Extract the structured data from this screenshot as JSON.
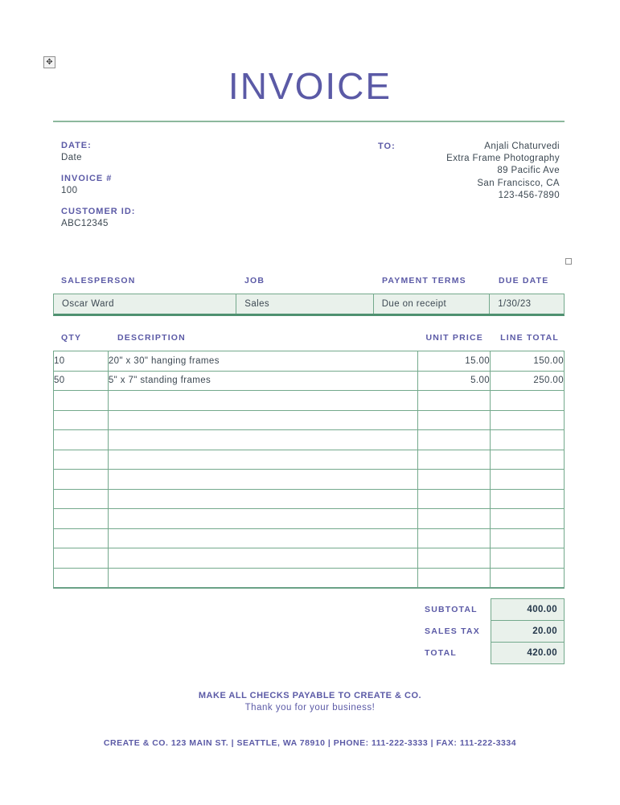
{
  "title": "INVOICE",
  "meta": {
    "date_label": "DATE:",
    "date_value": "Date",
    "invoice_label": "INVOICE #",
    "invoice_value": "100",
    "customer_label": "CUSTOMER ID:",
    "customer_value": "ABC12345",
    "to_label": "TO:",
    "to_lines": {
      "0": "Anjali Chaturvedi",
      "1": "Extra Frame Photography",
      "2": "89 Pacific Ave",
      "3": "San Francisco, CA",
      "4": "123-456-7890"
    }
  },
  "sales_table": {
    "headers": [
      "SALESPERSON",
      "JOB",
      "PAYMENT TERMS",
      "DUE DATE"
    ],
    "row": [
      "Oscar Ward",
      "Sales",
      "Due on receipt",
      "1/30/23"
    ]
  },
  "items_table": {
    "headers": [
      "QTY",
      "DESCRIPTION",
      "UNIT PRICE",
      "LINE TOTAL"
    ],
    "rows": [
      {
        "qty": "10",
        "description": "20\" x 30\" hanging frames",
        "unit_price": "15.00",
        "line_total": "150.00"
      },
      {
        "qty": "50",
        "description": "5\" x 7\" standing frames",
        "unit_price": "5.00",
        "line_total": "250.00"
      }
    ],
    "empty_row_count": 10
  },
  "totals": [
    {
      "label": "SUBTOTAL",
      "value": "400.00"
    },
    {
      "label": "SALES TAX",
      "value": "20.00"
    },
    {
      "label": "TOTAL",
      "value": "420.00"
    }
  ],
  "footer": {
    "checks_line": "MAKE ALL CHECKS PAYABLE TO CREATE & CO.",
    "thanks_line": "Thank you for your business!",
    "contact_line": "CREATE & CO. 123 MAIN ST. | SEATTLE, WA 78910 | PHONE: 111-222-3333 | FAX: 111-222-3334"
  },
  "colors": {
    "accent_purple": "#5b5aa6",
    "green_border": "#74a98c",
    "green_border_dark": "#4f9170",
    "green_fill": "#e9f1eb",
    "text_dark": "#3c4852"
  }
}
